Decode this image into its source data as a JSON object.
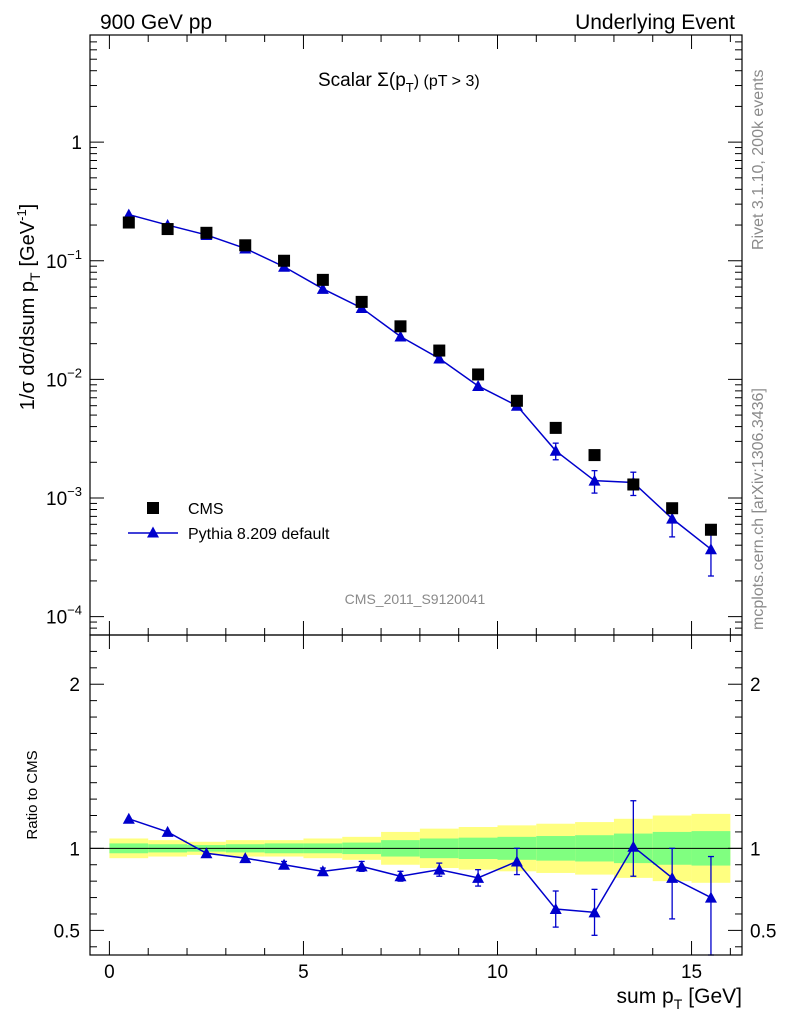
{
  "header": {
    "left": "900 GeV pp",
    "right": "Underlying Event"
  },
  "side_labels": {
    "rivet": "Rivet 3.1.10,  200k events",
    "mcplots": "mcplots.cern.ch [arXiv:1306.3436]"
  },
  "chart_data": [
    {
      "type": "scatter",
      "title_main": "Scalar Σ(p",
      "title_sub": "T",
      "title_tail": ") (pT >  3)",
      "ylabel_main": "1/σ dσ/dsum p",
      "ylabel_sub": "T",
      "ylabel_unit": "[GeV",
      "ylabel_unit_sup": "-1",
      "ylabel_unit_close": "]",
      "annotation": "CMS_2011_S9120041",
      "yscale": "log",
      "ylim": [
        7e-05,
        8.0
      ],
      "xlim": [
        -0.5,
        16.3
      ],
      "yticks": [
        {
          "value": 1,
          "base": "1",
          "exp": ""
        },
        {
          "value": 0.1,
          "base": "10",
          "exp": "−1"
        },
        {
          "value": 0.01,
          "base": "10",
          "exp": "−2"
        },
        {
          "value": 0.001,
          "base": "10",
          "exp": "−3"
        },
        {
          "value": 0.0001,
          "base": "10",
          "exp": "−4"
        }
      ],
      "legend_position": "bottom-left",
      "series": [
        {
          "name": "CMS",
          "marker": "square",
          "color": "#000000",
          "x": [
            0.5,
            1.5,
            2.5,
            3.5,
            4.5,
            5.5,
            6.5,
            7.5,
            8.5,
            9.5,
            10.5,
            11.5,
            12.5,
            13.5,
            14.5,
            15.5
          ],
          "y": [
            0.21,
            0.185,
            0.172,
            0.135,
            0.1,
            0.069,
            0.045,
            0.028,
            0.0175,
            0.011,
            0.0066,
            0.0039,
            0.0023,
            0.0013,
            0.00082,
            0.00054
          ]
        },
        {
          "name": "Pythia 8.209 default",
          "marker": "triangle",
          "color": "#0000cc",
          "x": [
            0.5,
            1.5,
            2.5,
            3.5,
            4.5,
            5.5,
            6.5,
            7.5,
            8.5,
            9.5,
            10.5,
            11.5,
            12.5,
            13.5,
            14.5,
            15.5
          ],
          "y": [
            0.245,
            0.2,
            0.165,
            0.127,
            0.089,
            0.058,
            0.04,
            0.023,
            0.015,
            0.0088,
            0.006,
            0.0025,
            0.0014,
            0.00135,
            0.00067,
            0.00037
          ],
          "yerr_low": [
            0,
            0,
            0,
            0,
            0,
            0,
            0,
            0,
            0,
            0,
            0.0004,
            0.0004,
            0.0003,
            0.0003,
            0.0002,
            0.00015
          ],
          "yerr_high": [
            0,
            0,
            0,
            0,
            0,
            0,
            0,
            0,
            0,
            0,
            0.0004,
            0.0004,
            0.0003,
            0.0003,
            0.0002,
            0.00015
          ]
        }
      ]
    },
    {
      "type": "line",
      "ylabel": "Ratio to CMS",
      "xlabel_main": "sum p",
      "xlabel_sub": "T",
      "xlabel_unit": "[GeV]",
      "ylim": [
        0.35,
        2.3
      ],
      "xlim": [
        -0.5,
        16.3
      ],
      "xticks": [
        0,
        5,
        10,
        15
      ],
      "yticks": [
        0.5,
        1,
        2
      ],
      "reference_line": 1,
      "bands": {
        "edges": [
          0,
          1,
          2,
          3,
          4,
          5,
          6,
          7,
          8,
          9,
          10,
          11,
          12,
          13,
          14,
          15,
          16
        ],
        "outer_color": "#ffff80",
        "inner_color": "#80ff80",
        "outer_low": [
          0.94,
          0.95,
          0.96,
          0.95,
          0.95,
          0.94,
          0.93,
          0.9,
          0.88,
          0.87,
          0.86,
          0.85,
          0.84,
          0.82,
          0.8,
          0.79
        ],
        "outer_high": [
          1.06,
          1.05,
          1.04,
          1.05,
          1.05,
          1.06,
          1.07,
          1.1,
          1.12,
          1.13,
          1.14,
          1.15,
          1.16,
          1.18,
          1.2,
          1.21
        ],
        "inner_low": [
          0.97,
          0.975,
          0.98,
          0.975,
          0.97,
          0.97,
          0.965,
          0.95,
          0.94,
          0.935,
          0.93,
          0.925,
          0.92,
          0.91,
          0.9,
          0.895
        ],
        "inner_high": [
          1.03,
          1.025,
          1.02,
          1.025,
          1.03,
          1.03,
          1.035,
          1.05,
          1.06,
          1.065,
          1.07,
          1.075,
          1.08,
          1.09,
          1.1,
          1.105
        ]
      },
      "series": [
        {
          "name": "Pythia 8.209 default",
          "color": "#0000cc",
          "x": [
            0.5,
            1.5,
            2.5,
            3.5,
            4.5,
            5.5,
            6.5,
            7.5,
            8.5,
            9.5,
            10.5,
            11.5,
            12.5,
            13.5,
            14.5,
            15.5
          ],
          "y": [
            1.18,
            1.1,
            0.97,
            0.94,
            0.9,
            0.86,
            0.89,
            0.83,
            0.87,
            0.82,
            0.92,
            0.63,
            0.61,
            1.01,
            0.82,
            0.7
          ],
          "yerr_low": [
            0.01,
            0.01,
            0.01,
            0.01,
            0.02,
            0.02,
            0.03,
            0.03,
            0.04,
            0.05,
            0.08,
            0.11,
            0.14,
            0.18,
            0.25,
            0.36
          ],
          "yerr_high": [
            0.01,
            0.01,
            0.01,
            0.01,
            0.02,
            0.02,
            0.03,
            0.03,
            0.04,
            0.05,
            0.08,
            0.11,
            0.14,
            0.28,
            0.18,
            0.25
          ]
        }
      ]
    }
  ]
}
